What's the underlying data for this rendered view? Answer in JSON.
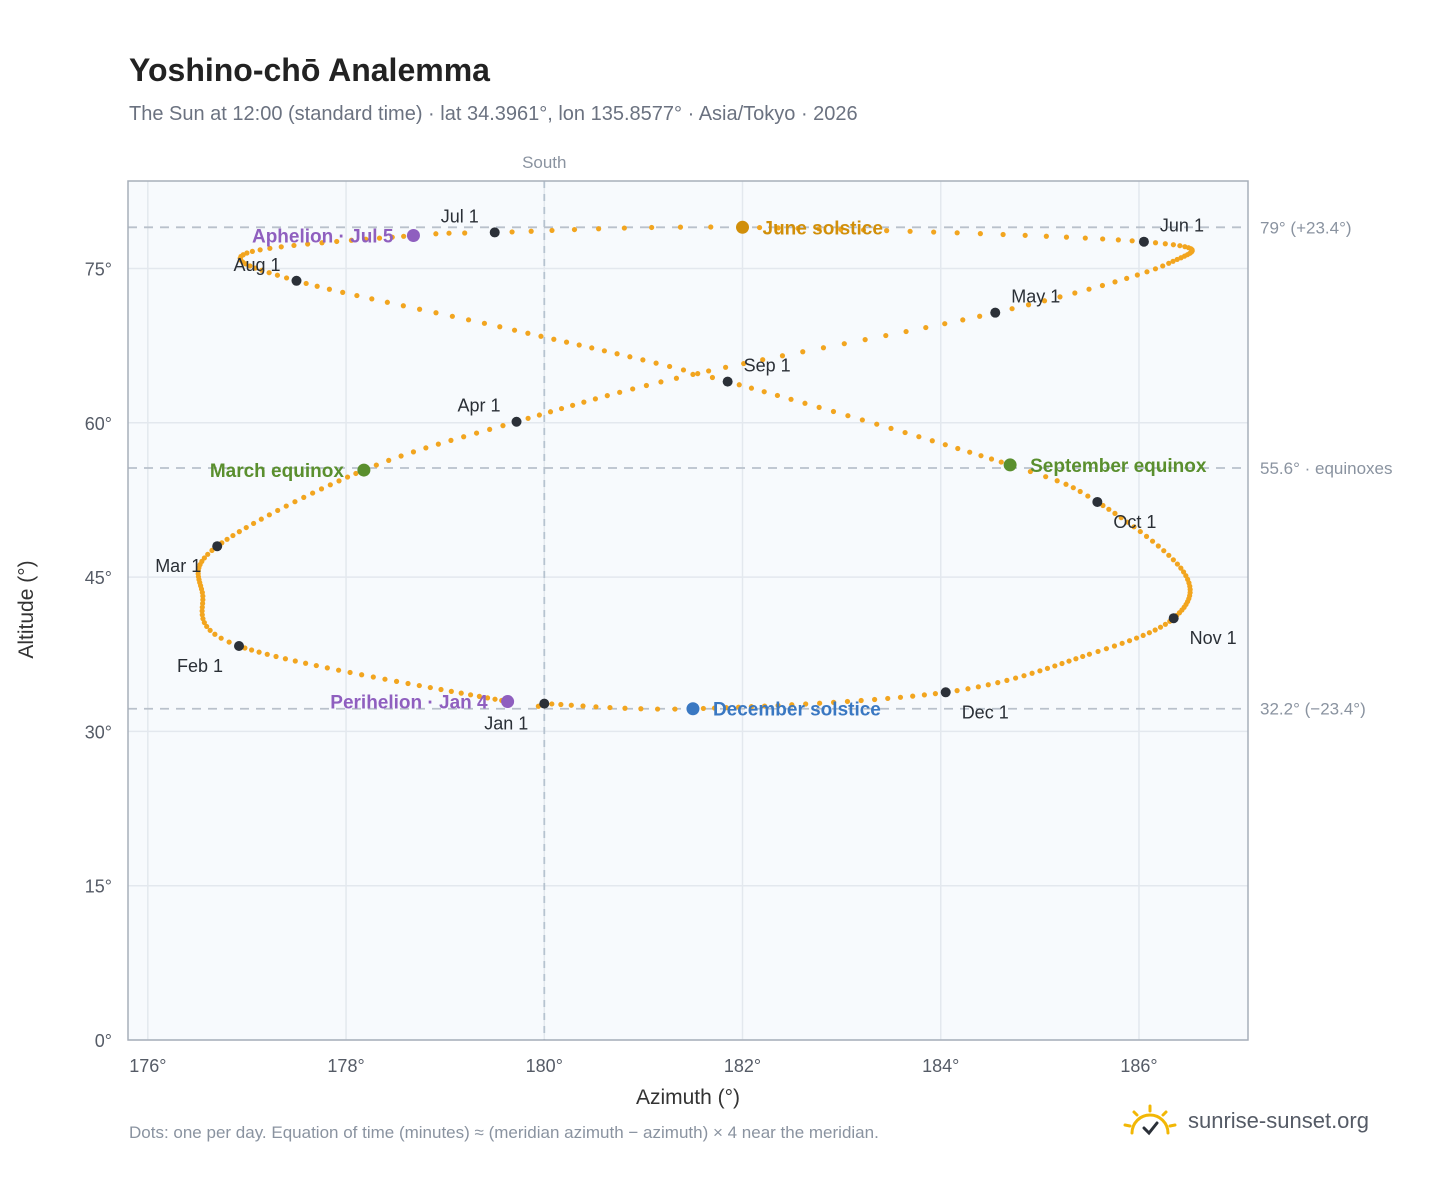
{
  "header": {
    "title": "Yoshino-chō Analemma",
    "subtitle": "The Sun at 12:00 (standard time) · lat 34.3961°, lon 135.8577° · Asia/Tokyo · 2026"
  },
  "footer": {
    "note": "Dots: one per day. Equation of time (minutes) ≈ (meridian azimuth − azimuth) × 4 near the meridian.",
    "brand": "sunrise-sunset.org",
    "brand_icon": "sun-check-icon"
  },
  "colors": {
    "path": "#f2a51f",
    "month_marker": "#2b3038",
    "march_equinox": "#5a8f2e",
    "september_equinox": "#5a8f2e",
    "june_solstice": "#d18f0a",
    "december_solstice": "#3a78c2",
    "perihelion": "#8f5fbf",
    "aphelion": "#8f5fbf",
    "plot_bg": "#f7fafd",
    "grid": "#e3e8ee",
    "frame": "#a7afba"
  },
  "chart_data": {
    "type": "scatter",
    "xlabel": "Azimuth (°)",
    "ylabel": "Altitude (°)",
    "xlim": [
      175.8,
      187.1
    ],
    "ylim": [
      0,
      83.5
    ],
    "x_ticks": [
      176,
      178,
      180,
      182,
      184,
      186
    ],
    "x_tick_labels": [
      "176°",
      "178°",
      "180°",
      "182°",
      "184°",
      "186°"
    ],
    "y_ticks": [
      0,
      15,
      30,
      45,
      60,
      75
    ],
    "y_tick_labels": [
      "0°",
      "15°",
      "30°",
      "45°",
      "60°",
      "75°"
    ],
    "grid": true,
    "meridian": {
      "azimuth": 180,
      "label": "South"
    },
    "reference_lines": [
      {
        "altitude": 79.0,
        "label": "79° (+23.4°)"
      },
      {
        "altitude": 55.6,
        "label": "55.6° · equinoxes"
      },
      {
        "altitude": 32.2,
        "label": "32.2° (−23.4°)"
      }
    ],
    "daily_series": {
      "name": "",
      "note": "one dot per day, interpolated through the anchor points below",
      "points": [
        {
          "day": 1,
          "az": 180.0,
          "alt": 32.7
        },
        {
          "day": 4,
          "az": 179.63,
          "alt": 32.9
        },
        {
          "day": 32,
          "az": 176.92,
          "alt": 38.3
        },
        {
          "day": 46,
          "az": 176.55,
          "alt": 43.5
        },
        {
          "day": 60,
          "az": 176.7,
          "alt": 48.0
        },
        {
          "day": 79,
          "az": 178.18,
          "alt": 55.4
        },
        {
          "day": 91,
          "az": 179.72,
          "alt": 60.1
        },
        {
          "day": 105,
          "az": 181.5,
          "alt": 64.7
        },
        {
          "day": 121,
          "az": 184.55,
          "alt": 70.7
        },
        {
          "day": 135,
          "az": 186.3,
          "alt": 75.5
        },
        {
          "day": 152,
          "az": 186.05,
          "alt": 77.6
        },
        {
          "day": 172,
          "az": 182.0,
          "alt": 79.0
        },
        {
          "day": 182,
          "az": 179.5,
          "alt": 78.5
        },
        {
          "day": 186,
          "az": 178.68,
          "alt": 78.2
        },
        {
          "day": 200,
          "az": 177.0,
          "alt": 76.5
        },
        {
          "day": 213,
          "az": 177.5,
          "alt": 73.8
        },
        {
          "day": 228,
          "az": 179.7,
          "alt": 69.0
        },
        {
          "day": 244,
          "az": 181.85,
          "alt": 64.0
        },
        {
          "day": 266,
          "az": 184.7,
          "alt": 55.9
        },
        {
          "day": 274,
          "az": 185.58,
          "alt": 52.3
        },
        {
          "day": 290,
          "az": 186.45,
          "alt": 45.5
        },
        {
          "day": 305,
          "az": 186.35,
          "alt": 41.0
        },
        {
          "day": 318,
          "az": 185.5,
          "alt": 37.5
        },
        {
          "day": 335,
          "az": 184.05,
          "alt": 33.8
        },
        {
          "day": 355,
          "az": 181.5,
          "alt": 32.2
        },
        {
          "day": 366,
          "az": 180.0,
          "alt": 32.7
        }
      ]
    },
    "month_markers": [
      {
        "label": "Jan 1",
        "az": 180.0,
        "alt": 32.7,
        "anchor": "below-left"
      },
      {
        "label": "Feb 1",
        "az": 176.92,
        "alt": 38.3,
        "anchor": "below-left"
      },
      {
        "label": "Mar 1",
        "az": 176.7,
        "alt": 48.0,
        "anchor": "below-left"
      },
      {
        "label": "Apr 1",
        "az": 179.72,
        "alt": 60.1,
        "anchor": "above-left"
      },
      {
        "label": "May 1",
        "az": 184.55,
        "alt": 70.7,
        "anchor": "above-right"
      },
      {
        "label": "Jun 1",
        "az": 186.05,
        "alt": 77.6,
        "anchor": "above-right"
      },
      {
        "label": "Jul 1",
        "az": 179.5,
        "alt": 78.5,
        "anchor": "above-left"
      },
      {
        "label": "Aug 1",
        "az": 177.5,
        "alt": 73.8,
        "anchor": "above-left"
      },
      {
        "label": "Sep 1",
        "az": 181.85,
        "alt": 64.0,
        "anchor": "above-right"
      },
      {
        "label": "Oct 1",
        "az": 185.58,
        "alt": 52.3,
        "anchor": "below-right"
      },
      {
        "label": "Nov 1",
        "az": 186.35,
        "alt": 41.0,
        "anchor": "below-right"
      },
      {
        "label": "Dec 1",
        "az": 184.05,
        "alt": 33.8,
        "anchor": "below-right"
      }
    ],
    "events": [
      {
        "key": "march_equinox",
        "label": "March equinox",
        "az": 178.18,
        "alt": 55.4,
        "side": "left"
      },
      {
        "key": "june_solstice",
        "label": "June solstice",
        "az": 182.0,
        "alt": 79.0,
        "side": "right"
      },
      {
        "key": "september_equinox",
        "label": "September equinox",
        "az": 184.7,
        "alt": 55.9,
        "side": "right"
      },
      {
        "key": "december_solstice",
        "label": "December solstice",
        "az": 181.5,
        "alt": 32.2,
        "side": "right"
      },
      {
        "key": "perihelion",
        "label": "Perihelion · Jan 4",
        "az": 179.63,
        "alt": 32.9,
        "side": "left"
      },
      {
        "key": "aphelion",
        "label": "Aphelion · Jul 5",
        "az": 178.68,
        "alt": 78.2,
        "side": "left"
      }
    ]
  }
}
